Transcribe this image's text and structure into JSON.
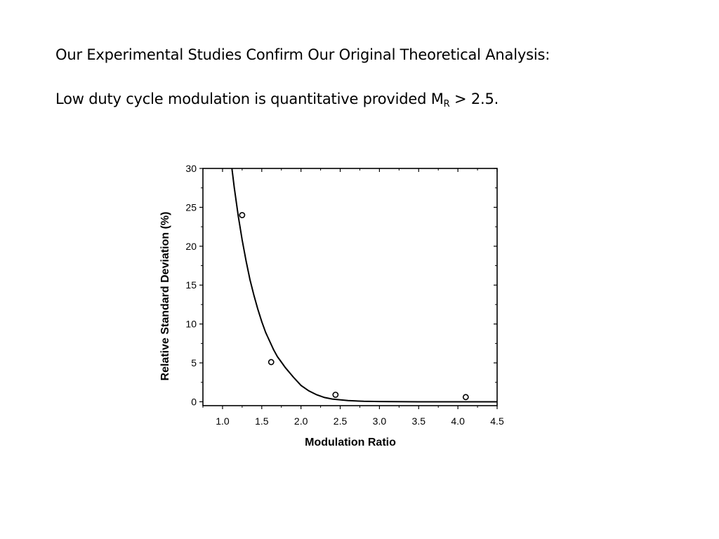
{
  "slide": {
    "heading": "Our Experimental Studies Confirm Our Original Theoretical Analysis:",
    "statement_prefix": "Low duty cycle modulation is quantitative provided M",
    "statement_subscript": "R",
    "statement_suffix": " > 2.5."
  },
  "chart_data": {
    "type": "scatter",
    "xlabel": "Modulation Ratio",
    "ylabel": "Relative Standard Deviation (%)",
    "xlim": [
      0.75,
      4.5
    ],
    "ylim": [
      -0.5,
      30
    ],
    "xticks": [
      1.0,
      1.5,
      2.0,
      2.5,
      3.0,
      3.5,
      4.0,
      4.5
    ],
    "xtick_labels": [
      "1.0",
      "1.5",
      "2.0",
      "2.5",
      "3.0",
      "3.5",
      "4.0",
      "4.5"
    ],
    "yticks": [
      0,
      5,
      10,
      15,
      20,
      25,
      30
    ],
    "ytick_labels": [
      "0",
      "5",
      "10",
      "15",
      "20",
      "25",
      "30"
    ],
    "grid": false,
    "series": [
      {
        "kind": "points",
        "marker": "open-circle",
        "x": [
          1.25,
          1.62,
          2.44,
          4.1
        ],
        "y": [
          24.0,
          5.1,
          0.9,
          0.6
        ]
      },
      {
        "kind": "fit-curve",
        "x": [
          1.12,
          1.15,
          1.2,
          1.25,
          1.3,
          1.35,
          1.4,
          1.45,
          1.5,
          1.55,
          1.6,
          1.65,
          1.7,
          1.75,
          1.8,
          1.9,
          2.0,
          2.1,
          2.2,
          2.3,
          2.4,
          2.6,
          2.8,
          3.0,
          3.5,
          4.0,
          4.5
        ],
        "y": [
          30.0,
          27.5,
          23.9,
          20.8,
          18.1,
          15.7,
          13.7,
          11.9,
          10.3,
          8.9,
          7.8,
          6.7,
          5.8,
          5.1,
          4.4,
          3.2,
          2.1,
          1.4,
          0.9,
          0.55,
          0.35,
          0.15,
          0.06,
          0.03,
          0.0,
          0.0,
          0.0
        ]
      }
    ]
  }
}
